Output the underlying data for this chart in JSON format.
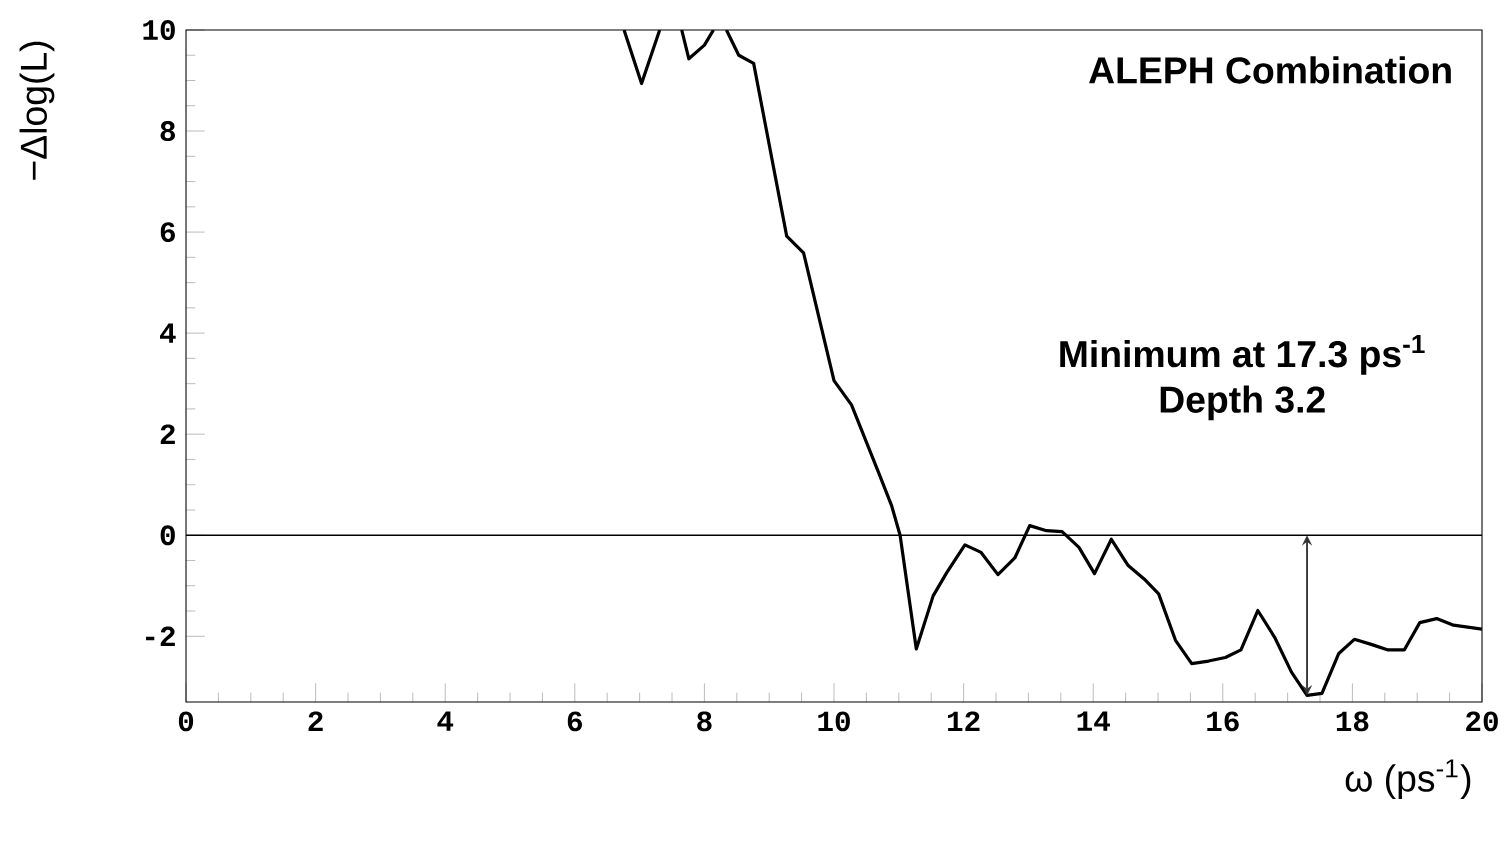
{
  "chart_data": {
    "type": "line",
    "title": "ALEPH Combination",
    "xlabel": "ω (ps$^{-1}$)",
    "ylabel": "−Δlog(L)",
    "x": [
      6.76,
      7.03,
      7.31,
      7.5,
      7.65,
      7.76,
      8.0,
      8.14,
      8.25,
      8.34,
      8.53,
      8.76,
      9.27,
      9.53,
      10.0,
      10.27,
      10.71,
      10.89,
      11.02,
      11.27,
      11.53,
      11.74,
      12.02,
      12.27,
      12.53,
      12.79,
      13.02,
      13.28,
      13.52,
      13.78,
      14.02,
      14.28,
      14.54,
      14.79,
      15.01,
      15.27,
      15.52,
      15.78,
      16.04,
      16.28,
      16.54,
      16.8,
      17.06,
      17.3,
      17.53,
      17.79,
      18.03,
      18.29,
      18.55,
      18.8,
      19.04,
      19.3,
      19.56,
      20.0
    ],
    "series": [
      {
        "color": "#000000",
        "values": [
          10,
          8.94,
          10,
          null,
          10,
          9.43,
          9.7,
          10,
          null,
          10,
          9.5,
          9.34,
          5.92,
          5.59,
          3.06,
          2.58,
          1.17,
          0.58,
          0,
          -2.25,
          -1.2,
          -0.74,
          -0.19,
          -0.34,
          -0.78,
          -0.45,
          0.19,
          0.09,
          0.07,
          -0.24,
          -0.76,
          -0.08,
          -0.6,
          -0.87,
          -1.16,
          -2.08,
          -2.54,
          -2.49,
          -2.42,
          -2.27,
          -1.49,
          -2.02,
          -2.71,
          -3.17,
          -3.13,
          -2.34,
          -2.06,
          -2.16,
          -2.27,
          -2.27,
          -1.73,
          -1.65,
          -1.78,
          -1.86
        ]
      }
    ],
    "xlim": [
      0,
      20
    ],
    "ylim": [
      -3.3,
      10
    ],
    "xticks": [
      0,
      2,
      4,
      6,
      8,
      10,
      12,
      14,
      16,
      18,
      20
    ],
    "yticks": [
      -2,
      0,
      2,
      4,
      6,
      8,
      10
    ],
    "ref_lines": [
      {
        "axis": "y",
        "value": 0,
        "color": "#000000"
      }
    ],
    "annotations": [
      "Minimum at 17.3 ps$^{-1}$",
      "Depth 3.2"
    ],
    "grid": false,
    "marker": "none",
    "line_style": "solid"
  }
}
